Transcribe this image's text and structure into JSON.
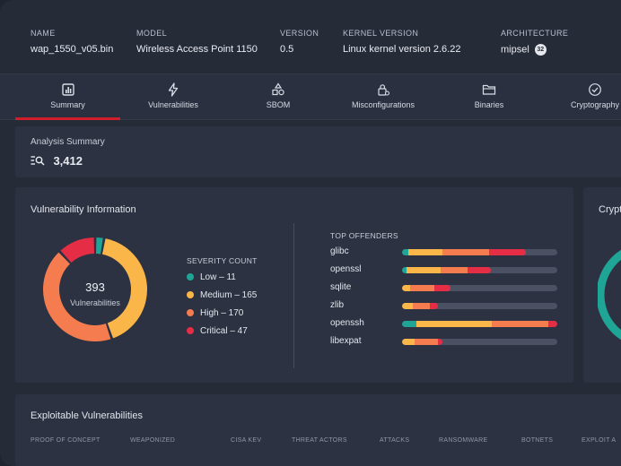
{
  "firmware": {
    "name": {
      "label": "NAME",
      "value": "wap_1550_v05.bin"
    },
    "model": {
      "label": "MODEL",
      "value": "Wireless Access Point 1150"
    },
    "version": {
      "label": "VERSION",
      "value": "0.5"
    },
    "kernel": {
      "label": "KERNEL VERSION",
      "value": "Linux kernel version 2.6.22"
    },
    "architecture": {
      "label": "ARCHITECTURE",
      "value": "mipsel",
      "badge": "32"
    }
  },
  "tabs": [
    {
      "label": "Summary",
      "icon": "bar-chart-icon",
      "active": true
    },
    {
      "label": "Vulnerabilities",
      "icon": "lightning-icon",
      "active": false
    },
    {
      "label": "SBOM",
      "icon": "shapes-icon",
      "active": false
    },
    {
      "label": "Misconfigurations",
      "icon": "lock-gear-icon",
      "active": false
    },
    {
      "label": "Binaries",
      "icon": "folder-icon",
      "active": false
    },
    {
      "label": "Cryptography",
      "icon": "check-circle-icon",
      "active": false
    }
  ],
  "analysis": {
    "title": "Analysis Summary",
    "count": "3,412",
    "icon": "list-search-icon"
  },
  "vuln_info": {
    "title": "Vulnerability Information",
    "total": "393",
    "total_label": "Vulnerabilities",
    "severity_title": "SEVERITY COUNT",
    "severities": [
      {
        "label": "Low – 11",
        "value": 11,
        "color": "#1fa596"
      },
      {
        "label": "Medium – 165",
        "value": 165,
        "color": "#fbb64a"
      },
      {
        "label": "High – 170",
        "value": 170,
        "color": "#f57c4f"
      },
      {
        "label": "Critical – 47",
        "value": 47,
        "color": "#e52d46"
      }
    ],
    "offenders_title": "TOP OFFENDERS",
    "offenders": [
      {
        "name": "glibc",
        "segments": [
          {
            "color": "#1fa596",
            "frac": 0.04
          },
          {
            "color": "#fbb64a",
            "frac": 0.22
          },
          {
            "color": "#f57c4f",
            "frac": 0.3
          },
          {
            "color": "#e52d46",
            "frac": 0.24
          }
        ]
      },
      {
        "name": "openssl",
        "segments": [
          {
            "color": "#1fa596",
            "frac": 0.03
          },
          {
            "color": "#fbb64a",
            "frac": 0.22
          },
          {
            "color": "#f57c4f",
            "frac": 0.17
          },
          {
            "color": "#e52d46",
            "frac": 0.15
          }
        ]
      },
      {
        "name": "sqlite",
        "segments": [
          {
            "color": "#fbb64a",
            "frac": 0.05
          },
          {
            "color": "#f57c4f",
            "frac": 0.16
          },
          {
            "color": "#e52d46",
            "frac": 0.1
          }
        ]
      },
      {
        "name": "zlib",
        "segments": [
          {
            "color": "#fbb64a",
            "frac": 0.07
          },
          {
            "color": "#f57c4f",
            "frac": 0.11
          },
          {
            "color": "#e52d46",
            "frac": 0.05
          }
        ]
      },
      {
        "name": "openssh",
        "segments": [
          {
            "color": "#1fa596",
            "frac": 0.09
          },
          {
            "color": "#fbb64a",
            "frac": 0.49
          },
          {
            "color": "#f57c4f",
            "frac": 0.36
          },
          {
            "color": "#e52d46",
            "frac": 0.06
          }
        ]
      },
      {
        "name": "libexpat",
        "segments": [
          {
            "color": "#fbb64a",
            "frac": 0.08
          },
          {
            "color": "#f57c4f",
            "frac": 0.15
          },
          {
            "color": "#e52d46",
            "frac": 0.03
          }
        ]
      }
    ]
  },
  "crypto_card": {
    "title": "Crypt"
  },
  "exploitable": {
    "title": "Exploitable Vulnerabilities",
    "columns": [
      "PROOF OF CONCEPT",
      "WEAPONIZED",
      "CISA KEV",
      "THREAT ACTORS",
      "ATTACKS",
      "RANSOMWARE",
      "BOTNETS",
      "EXPLOIT A"
    ]
  }
}
